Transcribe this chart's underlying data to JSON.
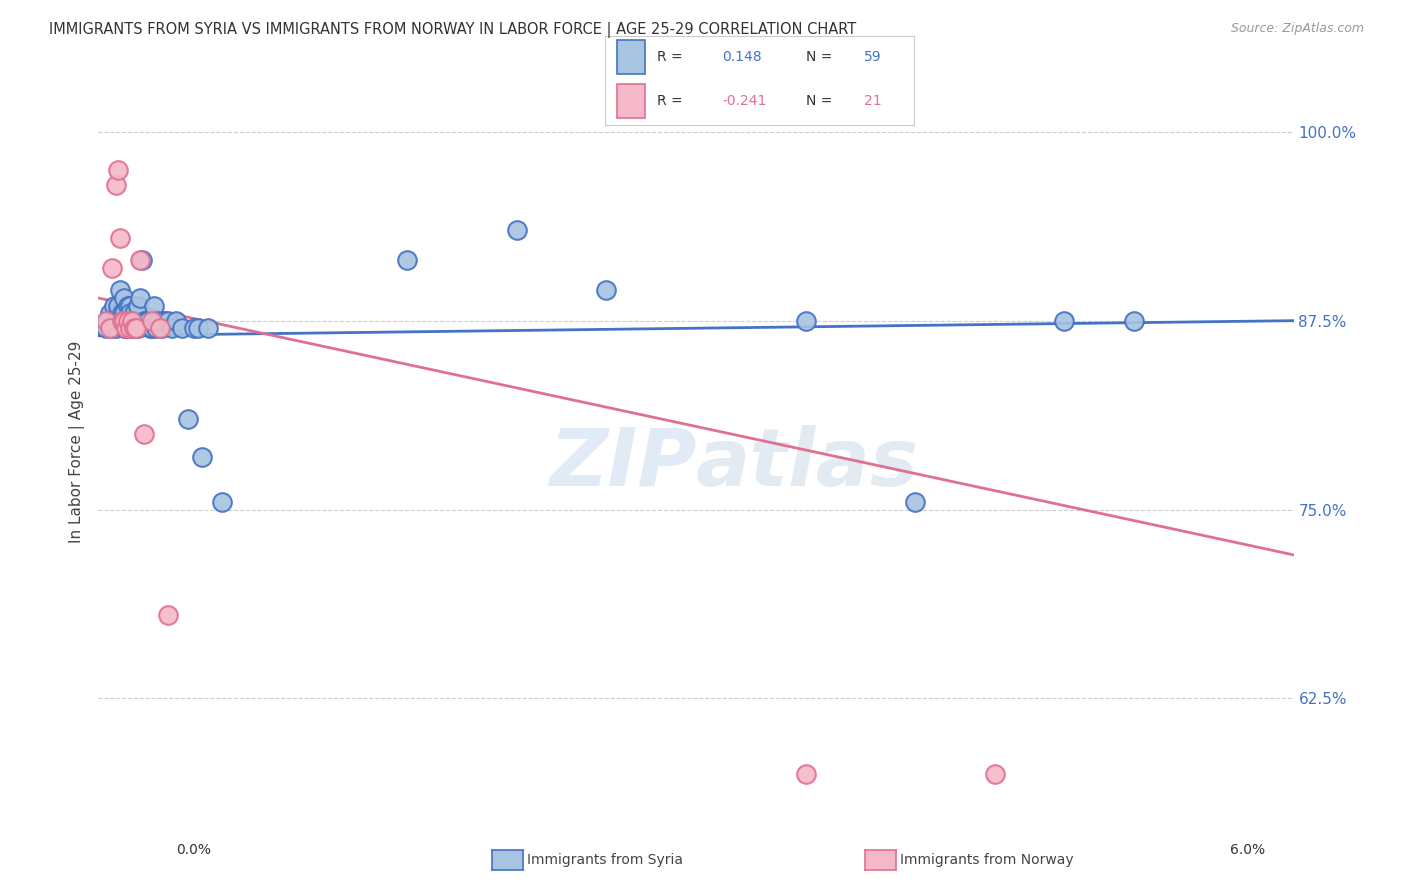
{
  "title": "IMMIGRANTS FROM SYRIA VS IMMIGRANTS FROM NORWAY IN LABOR FORCE | AGE 25-29 CORRELATION CHART",
  "source": "Source: ZipAtlas.com",
  "ylabel": "In Labor Force | Age 25-29",
  "xlim": [
    0.0,
    6.0
  ],
  "ylim": [
    55.0,
    104.0
  ],
  "yticks": [
    62.5,
    75.0,
    87.5,
    100.0
  ],
  "ytick_labels": [
    "62.5%",
    "75.0%",
    "87.5%",
    "100.0%"
  ],
  "legend_r_syria": "0.148",
  "legend_n_syria": "59",
  "legend_r_norway": "-0.241",
  "legend_n_norway": "21",
  "syria_color": "#a8c4e0",
  "norway_color": "#f4b8c8",
  "syria_line_color": "#4472c4",
  "norway_line_color": "#e07090",
  "watermark": "ZIPatlas",
  "syria_trendline": [
    86.5,
    87.5
  ],
  "norway_trendline": [
    89.0,
    72.0
  ],
  "syria_x": [
    0.04,
    0.05,
    0.06,
    0.07,
    0.08,
    0.08,
    0.09,
    0.1,
    0.1,
    0.11,
    0.12,
    0.12,
    0.13,
    0.13,
    0.13,
    0.14,
    0.14,
    0.15,
    0.15,
    0.15,
    0.16,
    0.16,
    0.17,
    0.17,
    0.18,
    0.18,
    0.19,
    0.19,
    0.2,
    0.2,
    0.21,
    0.22,
    0.23,
    0.24,
    0.25,
    0.26,
    0.27,
    0.28,
    0.29,
    0.3,
    0.32,
    0.33,
    0.35,
    0.37,
    0.39,
    0.42,
    0.45,
    0.48,
    0.5,
    0.52,
    0.55,
    0.62,
    1.55,
    2.1,
    2.55,
    3.55,
    4.1,
    4.85,
    5.2
  ],
  "syria_y": [
    87.0,
    87.5,
    88.0,
    87.0,
    88.5,
    87.5,
    87.0,
    88.0,
    88.5,
    89.5,
    88.0,
    87.5,
    87.0,
    89.0,
    88.0,
    87.5,
    87.0,
    88.5,
    87.5,
    87.0,
    88.5,
    88.0,
    87.0,
    87.0,
    88.0,
    87.5,
    87.0,
    87.5,
    87.0,
    88.5,
    89.0,
    91.5,
    87.5,
    87.5,
    87.5,
    87.0,
    87.0,
    88.5,
    87.0,
    87.5,
    87.0,
    87.5,
    87.5,
    87.0,
    87.5,
    87.0,
    81.0,
    87.0,
    87.0,
    78.5,
    87.0,
    75.5,
    91.5,
    93.5,
    89.5,
    87.5,
    75.5,
    87.5,
    87.5
  ],
  "norway_x": [
    0.04,
    0.06,
    0.07,
    0.09,
    0.1,
    0.11,
    0.12,
    0.13,
    0.14,
    0.15,
    0.16,
    0.17,
    0.18,
    0.19,
    0.21,
    0.23,
    0.27,
    0.31,
    0.35,
    3.55,
    4.5
  ],
  "norway_y": [
    87.5,
    87.0,
    91.0,
    96.5,
    97.5,
    93.0,
    87.5,
    87.5,
    87.0,
    87.5,
    87.0,
    87.5,
    87.0,
    87.0,
    91.5,
    80.0,
    87.5,
    87.0,
    68.0,
    57.5,
    57.5
  ]
}
